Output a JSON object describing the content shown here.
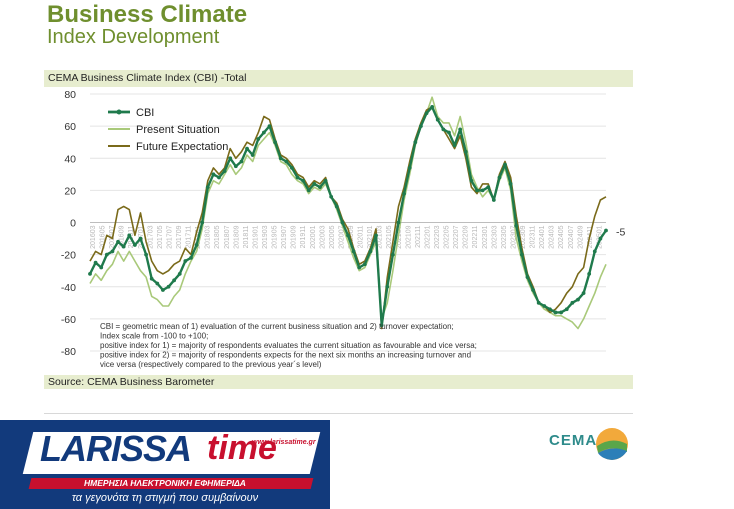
{
  "header": {
    "title": "Business Climate",
    "subtitle": "Index Development"
  },
  "chart_box": {
    "heading": "CEMA Business Climate Index (CBI) -Total",
    "source": "Source: CEMA Business Barometer"
  },
  "notes": [
    "CBI = geometric mean of 1) evaluation of the current business situation and 2) turnover expectation;",
    "Index scale from -100 to +100;",
    "positive index for 1) = majority of respondents evaluates the current situation as favourable and vice versa;",
    "positive index for 2) = majority of respondents expects for the next six months an increasing turnover and",
    "vice versa (respectively compared to the previous year´s level)"
  ],
  "end_label": "-5",
  "branding": {
    "larissa": "LARISSA",
    "time": "time",
    "url": "www.larissatime.gr",
    "tagline1": "ΗΜΕΡΗΣΙΑ ΗΛΕΚΤΡΟΝΙΚΗ ΕΦΗΜΕΡΙΔΑ",
    "tagline2": "τα γεγονότα τη στιγμή που συμβαίνουν",
    "cema": "CEMA"
  },
  "colors": {
    "cbi": "#1f7a4c",
    "present": "#a9c97a",
    "future": "#7a6a1a",
    "title": "#6f8f2e",
    "band": "#e7edcf"
  },
  "chart_data": {
    "type": "line",
    "ylim": [
      -80,
      80
    ],
    "yticks": [
      -80,
      -60,
      -40,
      -20,
      0,
      20,
      40,
      60,
      80
    ],
    "xticks": [
      "201603",
      "201605",
      "201607",
      "201609",
      "201611",
      "201701",
      "201703",
      "201705",
      "201707",
      "201709",
      "201711",
      "201801",
      "201803",
      "201805",
      "201807",
      "201809",
      "201811",
      "201901",
      "201903",
      "201905",
      "201907",
      "201909",
      "201911",
      "202001",
      "202003",
      "202005",
      "202007",
      "202009",
      "202011",
      "202101",
      "202103",
      "202105",
      "202107",
      "202109",
      "202111",
      "202201",
      "202203",
      "202205",
      "202207",
      "202209",
      "202211",
      "202301",
      "202303",
      "202305",
      "202307",
      "202309",
      "202311",
      "202401",
      "202403",
      "202405",
      "202407",
      "202409",
      "202411",
      "202501"
    ],
    "legend_position": "top-left",
    "series": [
      {
        "name": "CBI",
        "values": [
          -32,
          -25,
          -28,
          -20,
          -18,
          -12,
          -15,
          -8,
          -14,
          -10,
          -20,
          -35,
          -38,
          -42,
          -40,
          -36,
          -32,
          -24,
          -22,
          -14,
          0,
          22,
          30,
          28,
          32,
          40,
          35,
          38,
          46,
          42,
          52,
          56,
          60,
          50,
          40,
          38,
          34,
          28,
          26,
          20,
          24,
          22,
          26,
          16,
          10,
          0,
          -8,
          -18,
          -28,
          -26,
          -18,
          -8,
          -64,
          -40,
          -20,
          0,
          18,
          34,
          50,
          60,
          68,
          72,
          64,
          58,
          56,
          48,
          58,
          44,
          26,
          20,
          20,
          22,
          14,
          28,
          36,
          24,
          -2,
          -20,
          -34,
          -42,
          -50,
          -52,
          -54,
          -56,
          -56,
          -54,
          -50,
          -48,
          -44,
          -32,
          -18,
          -10,
          -5
        ]
      },
      {
        "name": "Present Situation",
        "values": [
          -38,
          -32,
          -36,
          -30,
          -26,
          -18,
          -24,
          -18,
          -24,
          -30,
          -34,
          -46,
          -48,
          -52,
          -52,
          -46,
          -42,
          -32,
          -24,
          -18,
          -4,
          18,
          26,
          24,
          30,
          36,
          30,
          34,
          42,
          38,
          48,
          52,
          56,
          48,
          38,
          36,
          30,
          26,
          24,
          18,
          22,
          20,
          24,
          16,
          8,
          -2,
          -12,
          -22,
          -30,
          -28,
          -20,
          -12,
          -60,
          -50,
          -30,
          -8,
          14,
          30,
          48,
          60,
          68,
          78,
          66,
          62,
          62,
          54,
          66,
          50,
          30,
          22,
          16,
          20,
          14,
          26,
          34,
          20,
          -10,
          -24,
          -36,
          -44,
          -50,
          -54,
          -56,
          -58,
          -58,
          -60,
          -62,
          -66,
          -60,
          -52,
          -44,
          -34,
          -26
        ]
      },
      {
        "name": "Future Expectation",
        "values": [
          -24,
          -18,
          -20,
          -8,
          -10,
          8,
          10,
          8,
          -8,
          6,
          -12,
          -24,
          -30,
          -32,
          -30,
          -26,
          -24,
          -16,
          -20,
          -6,
          6,
          26,
          34,
          30,
          34,
          46,
          40,
          44,
          50,
          48,
          56,
          66,
          64,
          52,
          42,
          40,
          36,
          30,
          28,
          22,
          26,
          24,
          28,
          16,
          12,
          2,
          -4,
          -16,
          -26,
          -24,
          -16,
          -4,
          -66,
          -34,
          -12,
          10,
          22,
          38,
          52,
          62,
          70,
          72,
          64,
          58,
          52,
          46,
          54,
          40,
          22,
          18,
          24,
          24,
          14,
          30,
          38,
          28,
          4,
          -16,
          -32,
          -40,
          -50,
          -52,
          -56,
          -54,
          -50,
          -44,
          -40,
          -32,
          -28,
          -10,
          4,
          14,
          16
        ]
      }
    ]
  }
}
